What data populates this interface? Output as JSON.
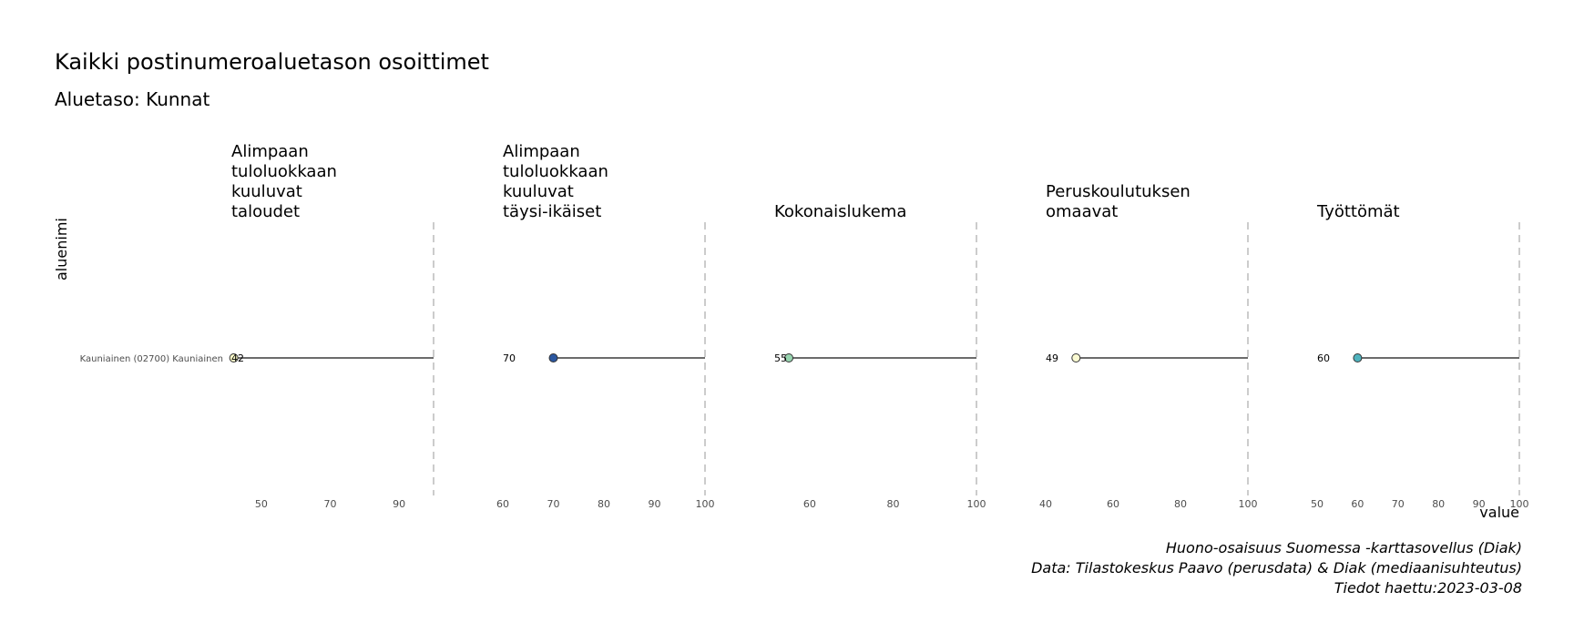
{
  "chart_data": {
    "type": "lollipop",
    "title": "Kaikki postinumeroaluetason osoittimet",
    "subtitle": "Aluetaso: Kunnat",
    "ylabel": "aluenimi",
    "xlabel": "value",
    "row_label": "Kauniainen (02700) Kauniainen",
    "reference_value": 100,
    "caption": [
      "Huono-osaisuus Suomessa -karttasovellus (Diak)",
      "Data: Tilastokeskus Paavo (perusdata) & Diak (mediaanisuhteutus)",
      "Tiedot haettu:2023-03-08"
    ],
    "panels": [
      {
        "label": "Alimpaan\ntuloluokkaan\nkuuluvat\ntaloudet",
        "value": 42,
        "value_label": "42",
        "xlim": [
          41.3,
          100
        ],
        "ticks": [
          50,
          70,
          90
        ],
        "point_color": "#ffffcc"
      },
      {
        "label": "Alimpaan\ntuloluokkaan\nkuuluvat\ntäysi-ikäiset",
        "value": 70,
        "value_label": "70",
        "xlim": [
          60,
          100
        ],
        "ticks": [
          60,
          70,
          80,
          90,
          100
        ],
        "point_color": "#2b57a0"
      },
      {
        "label": "Kokonaislukema",
        "value": 55,
        "value_label": "55",
        "xlim": [
          51.5,
          100
        ],
        "ticks": [
          60,
          80,
          100
        ],
        "point_color": "#98d5b0"
      },
      {
        "label": "Peruskoulutuksen\nomaavat",
        "value": 49,
        "value_label": "49",
        "xlim": [
          40,
          100
        ],
        "ticks": [
          40,
          60,
          80,
          100
        ],
        "point_color": "#fafad2"
      },
      {
        "label": "Työttömät",
        "value": 60,
        "value_label": "60",
        "xlim": [
          50,
          100
        ],
        "ticks": [
          50,
          60,
          70,
          80,
          90,
          100
        ],
        "point_color": "#4fb3be"
      }
    ]
  }
}
